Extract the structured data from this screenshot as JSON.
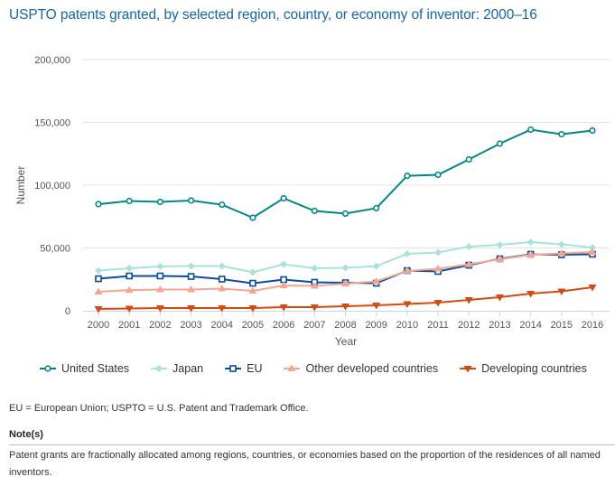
{
  "chart_data": {
    "type": "line",
    "title": "USPTO patents granted, by selected region, country, or economy of inventor: 2000–16",
    "xlabel": "Year",
    "ylabel": "Number",
    "ylim": [
      0,
      200000
    ],
    "yticks": [
      0,
      50000,
      100000,
      150000,
      200000
    ],
    "ytick_labels": [
      "0",
      "50,000",
      "100,000",
      "150,000",
      "200,000"
    ],
    "grid": true,
    "legend_position": "bottom",
    "x": [
      "2000",
      "2001",
      "2002",
      "2003",
      "2004",
      "2005",
      "2006",
      "2007",
      "2008",
      "2009",
      "2010",
      "2011",
      "2012",
      "2013",
      "2014",
      "2015",
      "2016"
    ],
    "series": [
      {
        "name": "United States",
        "color": "#00878a",
        "marker": "circle",
        "values": [
          84900,
          87400,
          86700,
          87800,
          84500,
          74100,
          89600,
          79500,
          77400,
          81700,
          107500,
          108300,
          120500,
          133100,
          144200,
          140600,
          143500
        ]
      },
      {
        "name": "Japan",
        "color": "#a8e2da",
        "marker": "diamond",
        "values": [
          32000,
          33800,
          35300,
          35600,
          35600,
          30600,
          37000,
          33800,
          34200,
          35500,
          45300,
          46400,
          51100,
          52500,
          54700,
          52900,
          50400
        ]
      },
      {
        "name": "EU",
        "color": "#0b4c9c",
        "marker": "square",
        "values": [
          25500,
          27700,
          27700,
          27300,
          25200,
          21900,
          24800,
          22700,
          22300,
          21900,
          32000,
          31300,
          36300,
          41400,
          45000,
          44600,
          45000
        ]
      },
      {
        "name": "Other developed countries",
        "color": "#f5a68f",
        "marker": "triangle-up",
        "values": [
          15100,
          16500,
          16900,
          16900,
          17600,
          15800,
          20100,
          19800,
          21600,
          23400,
          31700,
          33500,
          37000,
          41000,
          44600,
          45700,
          46800
        ]
      },
      {
        "name": "Developing countries",
        "color": "#d6490f",
        "marker": "triangle-down",
        "values": [
          1400,
          1800,
          2200,
          2200,
          2200,
          2200,
          2900,
          2900,
          3600,
          4300,
          5400,
          6500,
          8600,
          10800,
          13700,
          15500,
          18700
        ]
      }
    ]
  },
  "footnotes": {
    "abbreviations": "EU = European Union; USPTO = U.S. Patent and Trademark Office.",
    "notes_heading": "Note(s)",
    "notes_text": "Patent grants are fractionally allocated among regions, countries, or economies based on the proportion of the residences of all named inventors."
  }
}
